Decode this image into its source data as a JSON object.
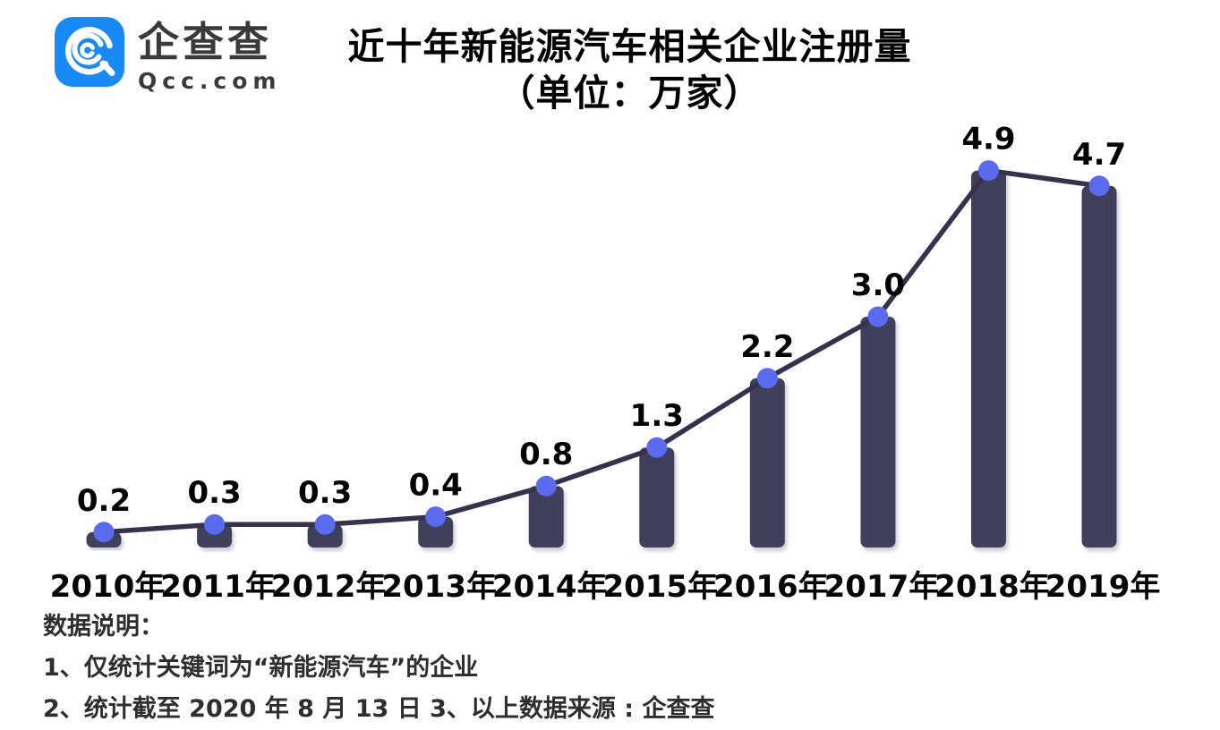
{
  "brand": {
    "name_cn": "企查查",
    "name_en": "Qcc.com",
    "logo_color": "#1989F5"
  },
  "title": {
    "line1": "近十年新能源汽车相关企业注册量",
    "line2": "（单位：万家）"
  },
  "chart_data": {
    "type": "bar",
    "subtype": "bar-with-line-overlay",
    "title": "近十年新能源汽车相关企业注册量（单位：万家）",
    "categories": [
      "2010年",
      "2011年",
      "2012年",
      "2013年",
      "2014年",
      "2015年",
      "2016年",
      "2017年",
      "2018年",
      "2019年"
    ],
    "values": [
      0.2,
      0.3,
      0.3,
      0.4,
      0.8,
      1.3,
      2.2,
      3.0,
      4.9,
      4.7
    ],
    "value_labels": [
      "0.2",
      "0.3",
      "0.3",
      "0.4",
      "0.8",
      "1.3",
      "2.2",
      "3.0",
      "4.9",
      "4.7"
    ],
    "xlabel": "",
    "ylabel": "",
    "unit": "万家",
    "ylim": [
      0,
      5.2
    ],
    "grid": false,
    "legend_position": "none",
    "bar_color": "#413F5A",
    "line_color": "#34334D",
    "dot_color": "#5A6BEE",
    "label_color": "#000000"
  },
  "notes": {
    "heading": "数据说明：",
    "line1": "1、仅统计关键词为“新能源汽车”的企业",
    "line2": "2、统计截至 2020 年 8 月 13 日  3、以上数据来源 : 企查查"
  }
}
